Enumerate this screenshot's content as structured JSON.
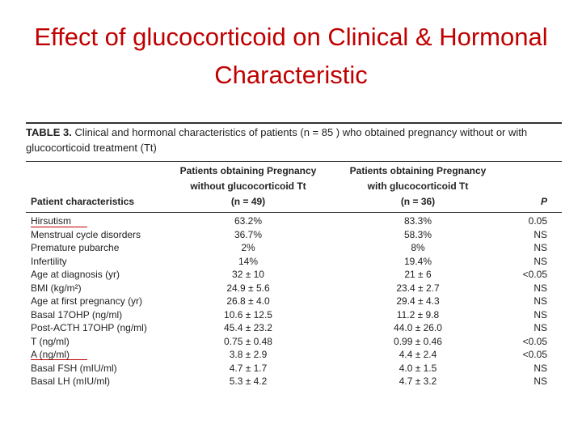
{
  "title": "Effect of glucocorticoid on Clinical & Hormonal Characteristic",
  "table": {
    "caption_label": "TABLE 3.",
    "caption_text": "Clinical and hormonal characteristics of patients (n = 85 ) who obtained pregnancy without or with glucocorticoid treatment (Tt)",
    "headers": [
      [
        "Patient characteristics"
      ],
      [
        "Patients obtaining Pregnancy",
        "without glucocorticoid Tt",
        "(n = 49)"
      ],
      [
        "Patients obtaining Pregnancy",
        "with glucocorticoid Tt",
        "(n = 36)"
      ],
      [
        "P"
      ]
    ],
    "rows": [
      [
        "Hirsutism",
        "63.2%",
        "83.3%",
        "0.05"
      ],
      [
        "Menstrual cycle disorders",
        "36.7%",
        "58.3%",
        "NS"
      ],
      [
        "Premature pubarche",
        "2%",
        "8%",
        "NS"
      ],
      [
        "Infertility",
        "14%",
        "19.4%",
        "NS"
      ],
      [
        "Age at diagnosis (yr)",
        "32 ± 10",
        "21 ± 6",
        "<0.05"
      ],
      [
        "BMI (kg/m²)",
        "24.9 ± 5.6",
        "23.4 ± 2.7",
        "NS"
      ],
      [
        "Age at first pregnancy (yr)",
        "26.8 ± 4.0",
        "29.4 ± 4.3",
        "NS"
      ],
      [
        "Basal 17OHP (ng/ml)",
        "10.6 ± 12.5",
        "11.2 ± 9.8",
        "NS"
      ],
      [
        "Post-ACTH 17OHP (ng/ml)",
        "45.4 ± 23.2",
        "44.0 ± 26.0",
        "NS"
      ],
      [
        "T (ng/ml)",
        "0.75 ± 0.48",
        "0.99 ± 0.46",
        "<0.05"
      ],
      [
        "A (ng/ml)",
        "3.8 ± 2.9",
        "4.4 ± 2.4",
        "<0.05"
      ],
      [
        "Basal FSH (mIU/ml)",
        "4.7 ± 1.7",
        "4.0 ± 1.5",
        "NS"
      ],
      [
        "Basal LH (mIU/ml)",
        "5.3 ± 4.2",
        "4.7 ± 3.2",
        "NS"
      ]
    ]
  }
}
